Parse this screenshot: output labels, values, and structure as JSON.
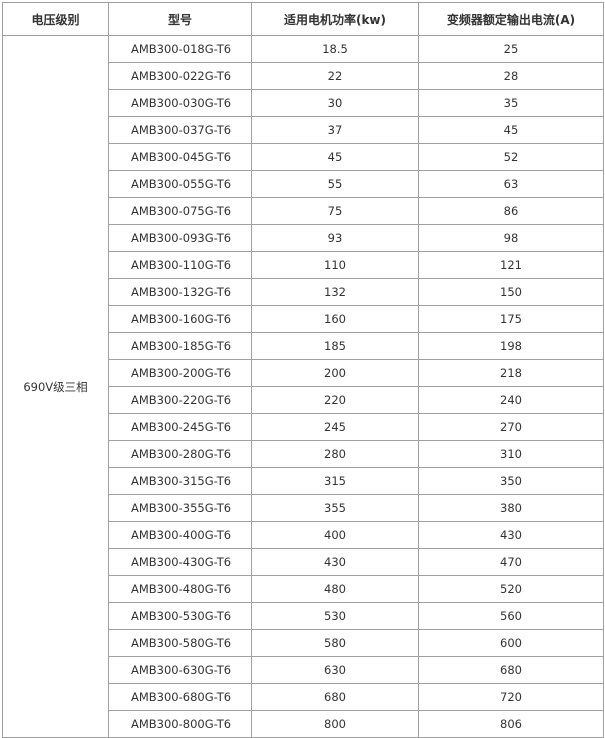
{
  "headers": [
    "电压级别",
    "型号",
    "适用电机功率(kw)",
    "变频器额定输出电流(A)"
  ],
  "voltage_level": "690V级三相",
  "rows": [
    {
      "model": "AMB300-018G-T6",
      "power": "18.5",
      "current": "25"
    },
    {
      "model": "AMB300-022G-T6",
      "power": "22",
      "current": "28"
    },
    {
      "model": "AMB300-030G-T6",
      "power": "30",
      "current": "35"
    },
    {
      "model": "AMB300-037G-T6",
      "power": "37",
      "current": "45"
    },
    {
      "model": "AMB300-045G-T6",
      "power": "45",
      "current": "52"
    },
    {
      "model": "AMB300-055G-T6",
      "power": "55",
      "current": "63"
    },
    {
      "model": "AMB300-075G-T6",
      "power": "75",
      "current": "86"
    },
    {
      "model": "AMB300-093G-T6",
      "power": "93",
      "current": "98"
    },
    {
      "model": "AMB300-110G-T6",
      "power": "110",
      "current": "121"
    },
    {
      "model": "AMB300-132G-T6",
      "power": "132",
      "current": "150"
    },
    {
      "model": "AMB300-160G-T6",
      "power": "160",
      "current": "175"
    },
    {
      "model": "AMB300-185G-T6",
      "power": "185",
      "current": "198"
    },
    {
      "model": "AMB300-200G-T6",
      "power": "200",
      "current": "218"
    },
    {
      "model": "AMB300-220G-T6",
      "power": "220",
      "current": "240"
    },
    {
      "model": "AMB300-245G-T6",
      "power": "245",
      "current": "270"
    },
    {
      "model": "AMB300-280G-T6",
      "power": "280",
      "current": "310"
    },
    {
      "model": "AMB300-315G-T6",
      "power": "315",
      "current": "350"
    },
    {
      "model": "AMB300-355G-T6",
      "power": "355",
      "current": "380"
    },
    {
      "model": "AMB300-400G-T6",
      "power": "400",
      "current": "430"
    },
    {
      "model": "AMB300-430G-T6",
      "power": "430",
      "current": "470"
    },
    {
      "model": "AMB300-480G-T6",
      "power": "480",
      "current": "520"
    },
    {
      "model": "AMB300-530G-T6",
      "power": "530",
      "current": "560"
    },
    {
      "model": "AMB300-580G-T6",
      "power": "580",
      "current": "600"
    },
    {
      "model": "AMB300-630G-T6",
      "power": "630",
      "current": "680"
    },
    {
      "model": "AMB300-680G-T6",
      "power": "680",
      "current": "720"
    },
    {
      "model": "AMB300-800G-T6",
      "power": "800",
      "current": "806"
    }
  ]
}
